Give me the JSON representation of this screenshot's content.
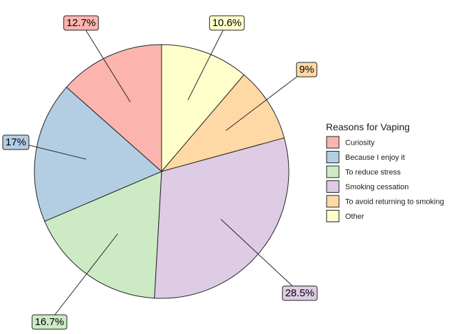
{
  "chart_data": {
    "type": "pie",
    "legend": {
      "title": "Reasons for Vaping",
      "placement": "right"
    },
    "slices": [
      {
        "label": "Other",
        "value": 10.6,
        "display": "10.6%",
        "color": "#FFFFCC"
      },
      {
        "label": "To avoid returning to smoking",
        "value": 9,
        "display": "9%",
        "color": "#FED9A6"
      },
      {
        "label": "Smoking cessation",
        "value": 28.5,
        "display": "28.5%",
        "color": "#DECBE4"
      },
      {
        "label": "To reduce stress",
        "value": 16.7,
        "display": "16.7%",
        "color": "#CCEBC5"
      },
      {
        "label": "Because I enjoy it",
        "value": 17,
        "display": "17%",
        "color": "#B3CDE3"
      },
      {
        "label": "Curiosity",
        "value": 12.7,
        "display": "12.7%",
        "color": "#FBB4AE"
      }
    ],
    "legend_order": [
      "Curiosity",
      "Because I enjoy it",
      "To reduce stress",
      "Smoking cessation",
      "To avoid returning to smoking",
      "Other"
    ]
  }
}
